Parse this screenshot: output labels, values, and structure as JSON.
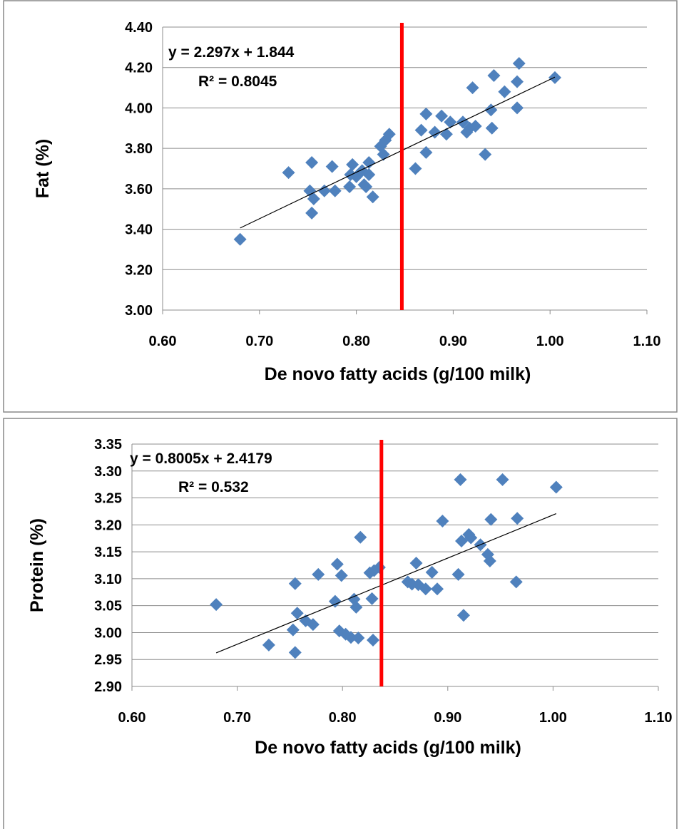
{
  "chart_data": [
    {
      "type": "scatter",
      "y_label": "Fat (%)",
      "x_label": "De novo fatty acids  (g/100 milk)",
      "color": "#4f81bd",
      "grid": true,
      "xlim": [
        0.6,
        1.1
      ],
      "xticks": [
        {
          "value": 0.6,
          "label": "0.60"
        },
        {
          "value": 0.7,
          "label": "0.70"
        },
        {
          "value": 0.8,
          "label": "0.80"
        },
        {
          "value": 0.9,
          "label": "0.90"
        },
        {
          "value": 1.0,
          "label": "1.00"
        },
        {
          "value": 1.1,
          "label": "1.10"
        }
      ],
      "ylim": [
        3.0,
        4.4
      ],
      "yticks": [
        {
          "value": 3.0,
          "label": "3.00"
        },
        {
          "value": 3.2,
          "label": "3.20"
        },
        {
          "value": 3.4,
          "label": "3.40"
        },
        {
          "value": 3.6,
          "label": "3.60"
        },
        {
          "value": 3.8,
          "label": "3.80"
        },
        {
          "value": 4.0,
          "label": "4.00"
        },
        {
          "value": 4.2,
          "label": "4.20"
        },
        {
          "value": 4.4,
          "label": "4.40"
        }
      ],
      "x": [
        0.68,
        0.73,
        0.754,
        0.752,
        0.756,
        0.754,
        0.767,
        0.775,
        0.778,
        0.796,
        0.794,
        0.793,
        0.8,
        0.806,
        0.808,
        0.81,
        0.813,
        0.813,
        0.817,
        0.825,
        0.828,
        0.83,
        0.834,
        0.861,
        0.867,
        0.872,
        0.872,
        0.881,
        0.888,
        0.893,
        0.897,
        0.91,
        0.914,
        0.917,
        0.92,
        0.923,
        0.933,
        0.939,
        0.94,
        0.942,
        0.953,
        0.966,
        0.966,
        0.968,
        1.005
      ],
      "values": [
        3.35,
        3.68,
        3.73,
        3.59,
        3.55,
        3.48,
        3.59,
        3.71,
        3.59,
        3.72,
        3.67,
        3.61,
        3.66,
        3.69,
        3.62,
        3.61,
        3.67,
        3.73,
        3.56,
        3.81,
        3.77,
        3.84,
        3.87,
        3.7,
        3.89,
        3.78,
        3.97,
        3.88,
        3.96,
        3.87,
        3.93,
        3.93,
        3.88,
        3.9,
        4.1,
        3.91,
        3.77,
        3.99,
        3.9,
        4.16,
        4.08,
        4.0,
        4.13,
        4.22,
        4.15
      ],
      "trendline": {
        "slope": 2.297,
        "intercept": 1.844,
        "color": "#000000",
        "equation": "y = 2.297x + 1.844",
        "r2": "R² = 0.8045"
      },
      "vline": {
        "x": 0.847,
        "color": "#ff0000"
      }
    },
    {
      "type": "scatter",
      "y_label": "Protein (%)",
      "x_label": "De novo fatty acids  (g/100 milk)",
      "color": "#4f81bd",
      "grid": true,
      "xlim": [
        0.6,
        1.1
      ],
      "xticks": [
        {
          "value": 0.6,
          "label": "0.60"
        },
        {
          "value": 0.7,
          "label": "0.70"
        },
        {
          "value": 0.8,
          "label": "0.80"
        },
        {
          "value": 0.9,
          "label": "0.90"
        },
        {
          "value": 1.0,
          "label": "1.00"
        },
        {
          "value": 1.1,
          "label": "1.10"
        }
      ],
      "ylim": [
        2.9,
        3.35
      ],
      "yticks": [
        {
          "value": 2.9,
          "label": "2.90"
        },
        {
          "value": 2.95,
          "label": "2.95"
        },
        {
          "value": 3.0,
          "label": "3.00"
        },
        {
          "value": 3.05,
          "label": "3.05"
        },
        {
          "value": 3.1,
          "label": "3.10"
        },
        {
          "value": 3.15,
          "label": "3.15"
        },
        {
          "value": 3.2,
          "label": "3.20"
        },
        {
          "value": 3.25,
          "label": "3.25"
        },
        {
          "value": 3.3,
          "label": "3.30"
        },
        {
          "value": 3.35,
          "label": "3.35"
        }
      ],
      "x": [
        0.68,
        0.73,
        0.753,
        0.755,
        0.755,
        0.757,
        0.765,
        0.772,
        0.777,
        0.793,
        0.795,
        0.797,
        0.799,
        0.803,
        0.808,
        0.811,
        0.813,
        0.815,
        0.817,
        0.826,
        0.828,
        0.829,
        0.83,
        0.835,
        0.862,
        0.866,
        0.87,
        0.872,
        0.879,
        0.885,
        0.89,
        0.895,
        0.91,
        0.912,
        0.913,
        0.915,
        0.92,
        0.922,
        0.931,
        0.938,
        0.94,
        0.941,
        0.952,
        0.965,
        0.966,
        1.003
      ],
      "values": [
        3.052,
        2.977,
        3.005,
        3.091,
        2.963,
        3.036,
        3.022,
        3.015,
        3.108,
        3.058,
        3.127,
        3.003,
        3.106,
        2.997,
        2.991,
        3.062,
        3.047,
        2.99,
        3.177,
        3.111,
        3.063,
        2.986,
        3.115,
        3.121,
        3.094,
        3.09,
        3.129,
        3.089,
        3.081,
        3.112,
        3.081,
        3.207,
        3.108,
        3.284,
        3.17,
        3.032,
        3.182,
        3.176,
        3.163,
        3.145,
        3.133,
        3.21,
        3.284,
        3.094,
        3.212,
        3.27
      ],
      "trendline": {
        "slope": 0.8005,
        "intercept": 2.4179,
        "color": "#000000",
        "equation": "y = 0.8005x + 2.4179",
        "r2": "R² = 0.532"
      },
      "vline": {
        "x": 0.837,
        "color": "#ff0000"
      }
    }
  ]
}
